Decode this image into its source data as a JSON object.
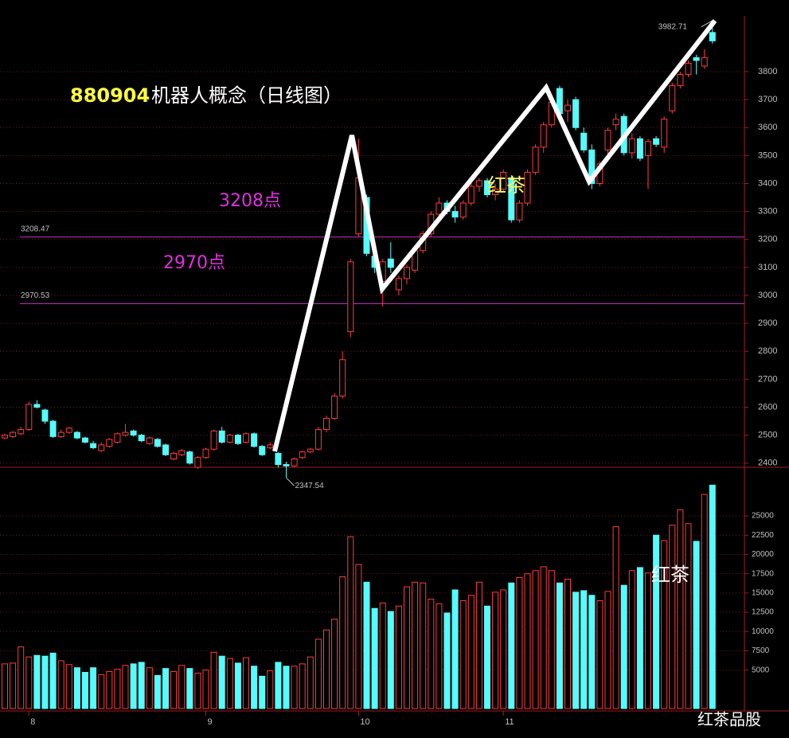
{
  "chart_data": [
    {
      "type": "candlestick",
      "code": "880904",
      "title": "机器人概念（日线图）",
      "up_color": "#ff3c3c",
      "down_color": "#54fcfc",
      "ylim": [
        2385,
        3985
      ],
      "yticks": [
        2400,
        2500,
        2600,
        2700,
        2800,
        2900,
        3000,
        3100,
        3200,
        3300,
        3400,
        3500,
        3600,
        3700,
        3800
      ],
      "grid": true,
      "open": [
        2490,
        2495,
        2505,
        2520,
        2610,
        2590,
        2550,
        2495,
        2510,
        2510,
        2490,
        2470,
        2445,
        2460,
        2475,
        2500,
        2515,
        2500,
        2470,
        2485,
        2465,
        2415,
        2430,
        2440,
        2385,
        2420,
        2450,
        2515,
        2475,
        2500,
        2475,
        2505,
        2460,
        2455,
        2435,
        2395,
        2390,
        2420,
        2440,
        2450,
        2520,
        2560,
        2640,
        2870,
        3220,
        3350,
        3140,
        3050,
        3130,
        3020,
        3060,
        3090,
        3160,
        3220,
        3290,
        3330,
        3300,
        3280,
        3330,
        3390,
        3410,
        3360,
        3380,
        3420,
        3270,
        3330,
        3440,
        3530,
        3610,
        3740,
        3660,
        3700,
        3580,
        3520,
        3400,
        3520,
        3610,
        3640,
        3510,
        3560,
        3500,
        3560,
        3530,
        3660,
        3750,
        3790,
        3850,
        3820,
        3940
      ],
      "high": [
        2505,
        2515,
        2530,
        2620,
        2625,
        2595,
        2555,
        2520,
        2530,
        2515,
        2495,
        2480,
        2475,
        2490,
        2510,
        2540,
        2520,
        2505,
        2495,
        2490,
        2470,
        2440,
        2450,
        2445,
        2425,
        2455,
        2520,
        2530,
        2505,
        2505,
        2510,
        2510,
        2465,
        2475,
        2440,
        2405,
        2420,
        2445,
        2455,
        2530,
        2570,
        2650,
        2800,
        3130,
        3560,
        3360,
        3170,
        3130,
        3190,
        3070,
        3110,
        3170,
        3230,
        3300,
        3350,
        3340,
        3320,
        3340,
        3400,
        3420,
        3420,
        3400,
        3450,
        3430,
        3340,
        3450,
        3540,
        3620,
        3700,
        3750,
        3700,
        3710,
        3600,
        3540,
        3480,
        3600,
        3650,
        3650,
        3580,
        3570,
        3560,
        3570,
        3640,
        3760,
        3800,
        3840,
        3860,
        3880,
        3982.71
      ],
      "low": [
        2485,
        2490,
        2500,
        2515,
        2595,
        2540,
        2490,
        2490,
        2505,
        2485,
        2470,
        2450,
        2440,
        2455,
        2470,
        2495,
        2495,
        2475,
        2465,
        2455,
        2425,
        2410,
        2425,
        2395,
        2380,
        2415,
        2445,
        2470,
        2470,
        2465,
        2470,
        2455,
        2425,
        2450,
        2385,
        2347.54,
        2385,
        2415,
        2435,
        2445,
        2510,
        2555,
        2630,
        2850,
        3210,
        3140,
        3080,
        2960,
        3080,
        3000,
        3040,
        3080,
        3150,
        3210,
        3270,
        3290,
        3260,
        3270,
        3320,
        3370,
        3350,
        3340,
        3370,
        3260,
        3260,
        3320,
        3430,
        3510,
        3600,
        3640,
        3620,
        3590,
        3510,
        3380,
        3390,
        3500,
        3590,
        3500,
        3490,
        3480,
        3380,
        3530,
        3510,
        3650,
        3740,
        3780,
        3790,
        3810,
        3900
      ],
      "close": [
        2500,
        2510,
        2520,
        2610,
        2600,
        2550,
        2495,
        2510,
        2525,
        2490,
        2475,
        2455,
        2465,
        2485,
        2505,
        2510,
        2500,
        2480,
        2490,
        2460,
        2430,
        2435,
        2445,
        2400,
        2420,
        2450,
        2515,
        2475,
        2500,
        2470,
        2505,
        2460,
        2430,
        2465,
        2395,
        2390,
        2415,
        2440,
        2450,
        2520,
        2560,
        2640,
        2770,
        3120,
        3420,
        3150,
        3100,
        3120,
        3100,
        3060,
        3100,
        3160,
        3220,
        3290,
        3330,
        3300,
        3280,
        3330,
        3390,
        3410,
        3360,
        3380,
        3440,
        3270,
        3330,
        3440,
        3530,
        3610,
        3690,
        3650,
        3680,
        3600,
        3520,
        3400,
        3470,
        3590,
        3630,
        3510,
        3560,
        3490,
        3550,
        3540,
        3630,
        3750,
        3790,
        3830,
        3840,
        3850,
        3910
      ],
      "hlines": [
        {
          "value": 3208.47,
          "color": "#c832c8"
        },
        {
          "value": 2970.53,
          "color": "#c832c8"
        }
      ],
      "annotations": [
        "3208点",
        "2970点",
        "红茶"
      ]
    },
    {
      "type": "bar",
      "categories": [
        null,
        null,
        null,
        "8",
        null,
        null,
        null,
        null,
        null,
        null,
        null,
        null,
        null,
        null,
        null,
        null,
        null,
        null,
        null,
        null,
        null,
        null,
        null,
        null,
        null,
        "9",
        null,
        null,
        null,
        null,
        null,
        null,
        null,
        null,
        null,
        null,
        null,
        null,
        null,
        null,
        null,
        null,
        null,
        null,
        "10",
        null,
        null,
        null,
        null,
        null,
        null,
        null,
        null,
        null,
        null,
        null,
        null,
        null,
        null,
        null,
        null,
        null,
        "11",
        null,
        null,
        null,
        null,
        null,
        null,
        null,
        null,
        null,
        null,
        null,
        null,
        null,
        null,
        null,
        null,
        null,
        null,
        null,
        null,
        null,
        null,
        null,
        null,
        null,
        null
      ],
      "values": [
        5800,
        5900,
        8000,
        6700,
        6900,
        6800,
        7200,
        6200,
        5700,
        5300,
        4700,
        5300,
        4400,
        4800,
        5100,
        5600,
        5800,
        6000,
        5300,
        4300,
        5200,
        4800,
        5600,
        5200,
        4600,
        5000,
        7300,
        6800,
        6500,
        5900,
        6600,
        5500,
        4200,
        4900,
        6000,
        5500,
        5500,
        5800,
        6700,
        9000,
        10200,
        11600,
        17100,
        22300,
        18700,
        16400,
        13000,
        13700,
        12600,
        13300,
        15800,
        16400,
        16300,
        14200,
        13600,
        12400,
        15400,
        14000,
        14700,
        16400,
        13300,
        15100,
        15400,
        16300,
        17000,
        17500,
        17900,
        18400,
        17900,
        16300,
        16800,
        15100,
        15300,
        14700,
        14000,
        15200,
        23600,
        16000,
        17900,
        18300,
        17600,
        22500,
        21800,
        23800,
        25800,
        24000,
        21700,
        27800,
        29000
      ],
      "ylim": [
        0,
        31000
      ],
      "yticks": [
        5000,
        7500,
        10000,
        12500,
        15000,
        17500,
        20000,
        22500,
        25000
      ],
      "grid": true,
      "annotations": [
        "红茶"
      ]
    }
  ],
  "watermark": "红茶品股"
}
